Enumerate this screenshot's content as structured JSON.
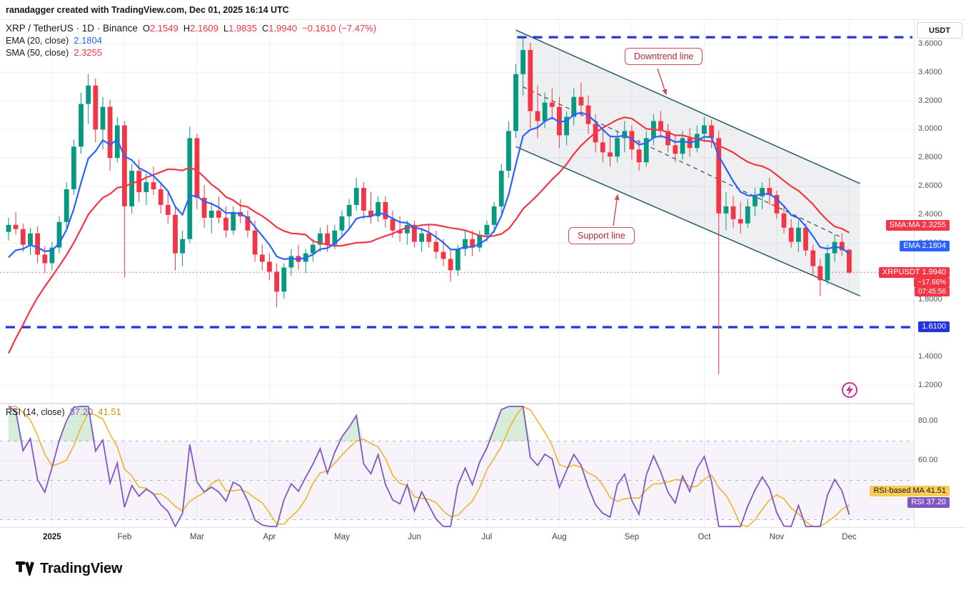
{
  "meta": {
    "attribution": "ranadagger created with TradingView.com, Dec 01, 2025 16:14 UTC"
  },
  "toolbar": {
    "currency_button": "USDT"
  },
  "legend": {
    "symbol": "XRP / TetherUS · 1D · Binance",
    "ohlc": {
      "labels": {
        "o": "O",
        "h": "H",
        "l": "L",
        "c": "C"
      },
      "o": "2.1549",
      "h": "2.1609",
      "l": "1.9835",
      "c": "1.9940",
      "change": "−0.1610 (−7.47%)"
    },
    "ema": {
      "label": "EMA (20, close)",
      "value": "2.1804"
    },
    "sma": {
      "label": "SMA (50, close)",
      "value": "2.3255"
    },
    "rsi": {
      "label": "RSI (14, close)",
      "value": "37.20",
      "ma_value": "41.51"
    }
  },
  "annotations": {
    "downtrend": {
      "text": "Downtrend line",
      "arrow": [
        [
          921,
          68
        ],
        [
          933,
          104
        ]
      ]
    },
    "support": {
      "text": "Support line",
      "arrow": [
        [
          859,
          288
        ],
        [
          865,
          245
        ]
      ]
    }
  },
  "axis": {
    "months": [
      {
        "label": "2025",
        "i": 6
      },
      {
        "label": "Feb",
        "i": 16
      },
      {
        "label": "Mar",
        "i": 26
      },
      {
        "label": "Apr",
        "i": 36
      },
      {
        "label": "May",
        "i": 46
      },
      {
        "label": "Jun",
        "i": 56
      },
      {
        "label": "Jul",
        "i": 66
      },
      {
        "label": "Aug",
        "i": 76
      },
      {
        "label": "Sep",
        "i": 86
      },
      {
        "label": "Oct",
        "i": 96
      },
      {
        "label": "Nov",
        "i": 106
      },
      {
        "label": "Dec",
        "i": 116
      }
    ]
  },
  "price_axis": {
    "ticks": [
      3.6,
      3.4,
      3.2,
      3.0,
      2.8,
      2.6,
      2.4,
      2.2,
      2.0,
      1.8,
      1.6,
      1.4,
      1.2
    ],
    "badges": [
      {
        "text": "SMA:MA 2.3255",
        "price": 2.3255,
        "bg_key": "down",
        "fg": "#ffffff"
      },
      {
        "text": "EMA 2.1804",
        "price": 2.1804,
        "bg_key": "ema",
        "fg": "#ffffff"
      },
      {
        "text": "XRPUSDT 1.9940",
        "price": 1.994,
        "bg_key": "down",
        "fg": "#ffffff",
        "sub": [
          "−17.66%",
          "07:45:56"
        ]
      },
      {
        "text": "1.6100",
        "price": 1.61,
        "bg_key": "level",
        "fg": "#ffffff"
      }
    ]
  },
  "rsi_axis": {
    "ticks": [
      80,
      60
    ],
    "badges": [
      {
        "text": "RSI-based MA 41.51",
        "value": 41.51,
        "bg_key": "badge_yellow",
        "fg": "#131722",
        "nudge": -16
      },
      {
        "text": "RSI 37.20",
        "value": 37.2,
        "bg_key": "rsi",
        "fg": "#ffffff",
        "nudge": -12
      }
    ]
  },
  "colors": {
    "up": "#089981",
    "down": "#f23645",
    "ema": "#2962ff",
    "sma": "#f23645",
    "rsi": "#7e57c2",
    "rsi_ma": "#f0b429",
    "badge_yellow": "#f6ce56",
    "level": "#2433dd",
    "channel": "#2f6470",
    "channel_fill": "#7e8790",
    "overbought_fill": "#4caf50"
  },
  "footer": {
    "brand": "TradingView"
  },
  "chart_data": {
    "type": "candlestick",
    "title": "XRP / TetherUS · 1D · Binance with EMA(20), SMA(50), RSI(14)",
    "note": "3-day bars, mid-Dec 2024 through Dec 01 2025",
    "ylim": [
      1.08,
      3.77
    ],
    "rsi_ylim": [
      26,
      88
    ],
    "rsi_levels": [
      70,
      50,
      30
    ],
    "indicators": {
      "ema_bars": 7,
      "sma_bars": 17,
      "rsi_bars": 5,
      "rsi_ma_bars": 5
    },
    "hlines": [
      {
        "price": 3.65,
        "from_i": 70.2,
        "style": "dashed"
      },
      {
        "price": 1.61,
        "from_i": -0.4,
        "style": "dashed",
        "axis_label": "1.6100"
      }
    ],
    "channel": {
      "upper": [
        [
          70,
          3.7
        ],
        [
          117.5,
          2.62
        ]
      ],
      "lower": [
        [
          70,
          2.88
        ],
        [
          117.5,
          1.83
        ]
      ],
      "mid": [
        [
          71,
          3.3
        ],
        [
          115,
          2.24
        ]
      ]
    },
    "prior_closes": [
      0.5,
      0.51,
      0.52,
      0.52,
      0.53,
      0.54,
      0.55,
      0.6,
      0.75,
      0.95,
      1.1,
      1.28,
      1.4,
      1.52,
      1.6,
      1.95,
      2.2,
      2.35,
      2.28,
      2.32
    ],
    "candles": [
      [
        2.28,
        2.38,
        2.22,
        2.33
      ],
      [
        2.33,
        2.42,
        2.26,
        2.3
      ],
      [
        2.3,
        2.34,
        2.14,
        2.19
      ],
      [
        2.19,
        2.31,
        2.12,
        2.27
      ],
      [
        2.27,
        2.32,
        2.06,
        2.12
      ],
      [
        2.12,
        2.18,
        1.99,
        2.06
      ],
      [
        2.06,
        2.21,
        2.01,
        2.17
      ],
      [
        2.17,
        2.39,
        2.13,
        2.35
      ],
      [
        2.35,
        2.63,
        2.31,
        2.58
      ],
      [
        2.58,
        2.93,
        2.54,
        2.88
      ],
      [
        2.88,
        3.26,
        2.83,
        3.18
      ],
      [
        3.18,
        3.39,
        3.04,
        3.31
      ],
      [
        3.31,
        3.36,
        2.91,
        3.0
      ],
      [
        3.0,
        3.23,
        2.86,
        3.16
      ],
      [
        3.16,
        3.21,
        2.71,
        2.8
      ],
      [
        2.8,
        3.09,
        2.77,
        3.03
      ],
      [
        3.03,
        3.06,
        1.96,
        2.46
      ],
      [
        2.46,
        2.76,
        2.41,
        2.71
      ],
      [
        2.71,
        2.79,
        2.49,
        2.56
      ],
      [
        2.56,
        2.69,
        2.47,
        2.63
      ],
      [
        2.63,
        2.74,
        2.54,
        2.58
      ],
      [
        2.58,
        2.63,
        2.41,
        2.47
      ],
      [
        2.47,
        2.56,
        2.34,
        2.4
      ],
      [
        2.4,
        2.46,
        2.01,
        2.13
      ],
      [
        2.13,
        2.29,
        2.04,
        2.23
      ],
      [
        2.23,
        3.02,
        2.2,
        2.94
      ],
      [
        2.94,
        2.97,
        2.44,
        2.52
      ],
      [
        2.52,
        2.61,
        2.31,
        2.38
      ],
      [
        2.38,
        2.49,
        2.27,
        2.43
      ],
      [
        2.43,
        2.53,
        2.34,
        2.38
      ],
      [
        2.38,
        2.46,
        2.24,
        2.29
      ],
      [
        2.29,
        2.46,
        2.26,
        2.42
      ],
      [
        2.42,
        2.51,
        2.34,
        2.39
      ],
      [
        2.39,
        2.43,
        2.24,
        2.29
      ],
      [
        2.29,
        2.36,
        2.07,
        2.12
      ],
      [
        2.12,
        2.19,
        2.01,
        2.07
      ],
      [
        2.07,
        2.13,
        1.94,
        2.0
      ],
      [
        2.0,
        2.06,
        1.75,
        1.86
      ],
      [
        1.86,
        2.06,
        1.81,
        2.03
      ],
      [
        2.03,
        2.16,
        1.97,
        2.11
      ],
      [
        2.11,
        2.19,
        2.01,
        2.07
      ],
      [
        2.07,
        2.16,
        1.99,
        2.13
      ],
      [
        2.13,
        2.23,
        2.07,
        2.19
      ],
      [
        2.19,
        2.31,
        2.14,
        2.27
      ],
      [
        2.27,
        2.33,
        2.14,
        2.19
      ],
      [
        2.19,
        2.33,
        2.16,
        2.29
      ],
      [
        2.29,
        2.43,
        2.24,
        2.39
      ],
      [
        2.39,
        2.51,
        2.31,
        2.47
      ],
      [
        2.47,
        2.66,
        2.43,
        2.59
      ],
      [
        2.59,
        2.63,
        2.37,
        2.43
      ],
      [
        2.43,
        2.56,
        2.34,
        2.39
      ],
      [
        2.39,
        2.53,
        2.35,
        2.49
      ],
      [
        2.49,
        2.53,
        2.31,
        2.37
      ],
      [
        2.37,
        2.43,
        2.24,
        2.29
      ],
      [
        2.29,
        2.39,
        2.21,
        2.27
      ],
      [
        2.27,
        2.36,
        2.19,
        2.33
      ],
      [
        2.33,
        2.36,
        2.17,
        2.21
      ],
      [
        2.21,
        2.31,
        2.14,
        2.27
      ],
      [
        2.27,
        2.33,
        2.17,
        2.21
      ],
      [
        2.21,
        2.29,
        2.09,
        2.14
      ],
      [
        2.14,
        2.23,
        2.04,
        2.09
      ],
      [
        2.09,
        2.16,
        1.93,
        2.01
      ],
      [
        2.01,
        2.19,
        1.97,
        2.16
      ],
      [
        2.16,
        2.29,
        2.11,
        2.23
      ],
      [
        2.23,
        2.29,
        2.11,
        2.17
      ],
      [
        2.17,
        2.29,
        2.14,
        2.26
      ],
      [
        2.26,
        2.36,
        2.21,
        2.33
      ],
      [
        2.33,
        2.49,
        2.27,
        2.46
      ],
      [
        2.46,
        2.76,
        2.41,
        2.71
      ],
      [
        2.71,
        3.06,
        2.66,
        2.99
      ],
      [
        2.99,
        3.46,
        2.94,
        3.39
      ],
      [
        3.39,
        3.66,
        3.24,
        3.56
      ],
      [
        3.56,
        3.61,
        3.01,
        3.13
      ],
      [
        3.13,
        3.31,
        2.94,
        3.06
      ],
      [
        3.06,
        3.26,
        3.01,
        3.19
      ],
      [
        3.19,
        3.29,
        3.07,
        3.16
      ],
      [
        3.16,
        3.23,
        2.87,
        2.96
      ],
      [
        2.96,
        3.13,
        2.89,
        3.09
      ],
      [
        3.09,
        3.29,
        3.03,
        3.23
      ],
      [
        3.23,
        3.33,
        3.09,
        3.17
      ],
      [
        3.17,
        3.24,
        2.97,
        3.04
      ],
      [
        3.04,
        3.11,
        2.84,
        2.91
      ],
      [
        2.91,
        3.01,
        2.77,
        2.84
      ],
      [
        2.84,
        2.96,
        2.74,
        2.81
      ],
      [
        2.81,
        2.99,
        2.77,
        2.94
      ],
      [
        2.94,
        3.06,
        2.84,
        2.99
      ],
      [
        2.99,
        3.03,
        2.79,
        2.86
      ],
      [
        2.86,
        2.93,
        2.71,
        2.77
      ],
      [
        2.77,
        2.99,
        2.74,
        2.94
      ],
      [
        2.94,
        3.11,
        2.89,
        3.06
      ],
      [
        3.06,
        3.13,
        2.94,
        2.99
      ],
      [
        2.99,
        3.04,
        2.84,
        2.89
      ],
      [
        2.89,
        2.96,
        2.77,
        2.83
      ],
      [
        2.83,
        2.99,
        2.79,
        2.94
      ],
      [
        2.94,
        3.01,
        2.81,
        2.87
      ],
      [
        2.87,
        3.03,
        2.84,
        2.97
      ],
      [
        2.97,
        3.09,
        2.91,
        3.03
      ],
      [
        3.03,
        3.07,
        2.87,
        2.94
      ],
      [
        2.94,
        2.99,
        1.28,
        2.41
      ],
      [
        2.41,
        2.56,
        2.29,
        2.46
      ],
      [
        2.46,
        2.53,
        2.31,
        2.37
      ],
      [
        2.37,
        2.49,
        2.27,
        2.34
      ],
      [
        2.34,
        2.51,
        2.31,
        2.46
      ],
      [
        2.46,
        2.59,
        2.39,
        2.53
      ],
      [
        2.53,
        2.63,
        2.44,
        2.59
      ],
      [
        2.59,
        2.66,
        2.47,
        2.54
      ],
      [
        2.54,
        2.57,
        2.37,
        2.41
      ],
      [
        2.41,
        2.47,
        2.27,
        2.31
      ],
      [
        2.31,
        2.37,
        2.17,
        2.21
      ],
      [
        2.21,
        2.36,
        2.14,
        2.31
      ],
      [
        2.31,
        2.34,
        2.11,
        2.15
      ],
      [
        2.15,
        2.19,
        1.97,
        2.04
      ],
      [
        2.04,
        2.09,
        1.83,
        1.94
      ],
      [
        1.94,
        2.19,
        1.91,
        2.13
      ],
      [
        2.13,
        2.26,
        2.07,
        2.21
      ],
      [
        2.21,
        2.27,
        2.11,
        2.15
      ],
      [
        2.1549,
        2.1609,
        1.9835,
        1.994
      ]
    ]
  }
}
